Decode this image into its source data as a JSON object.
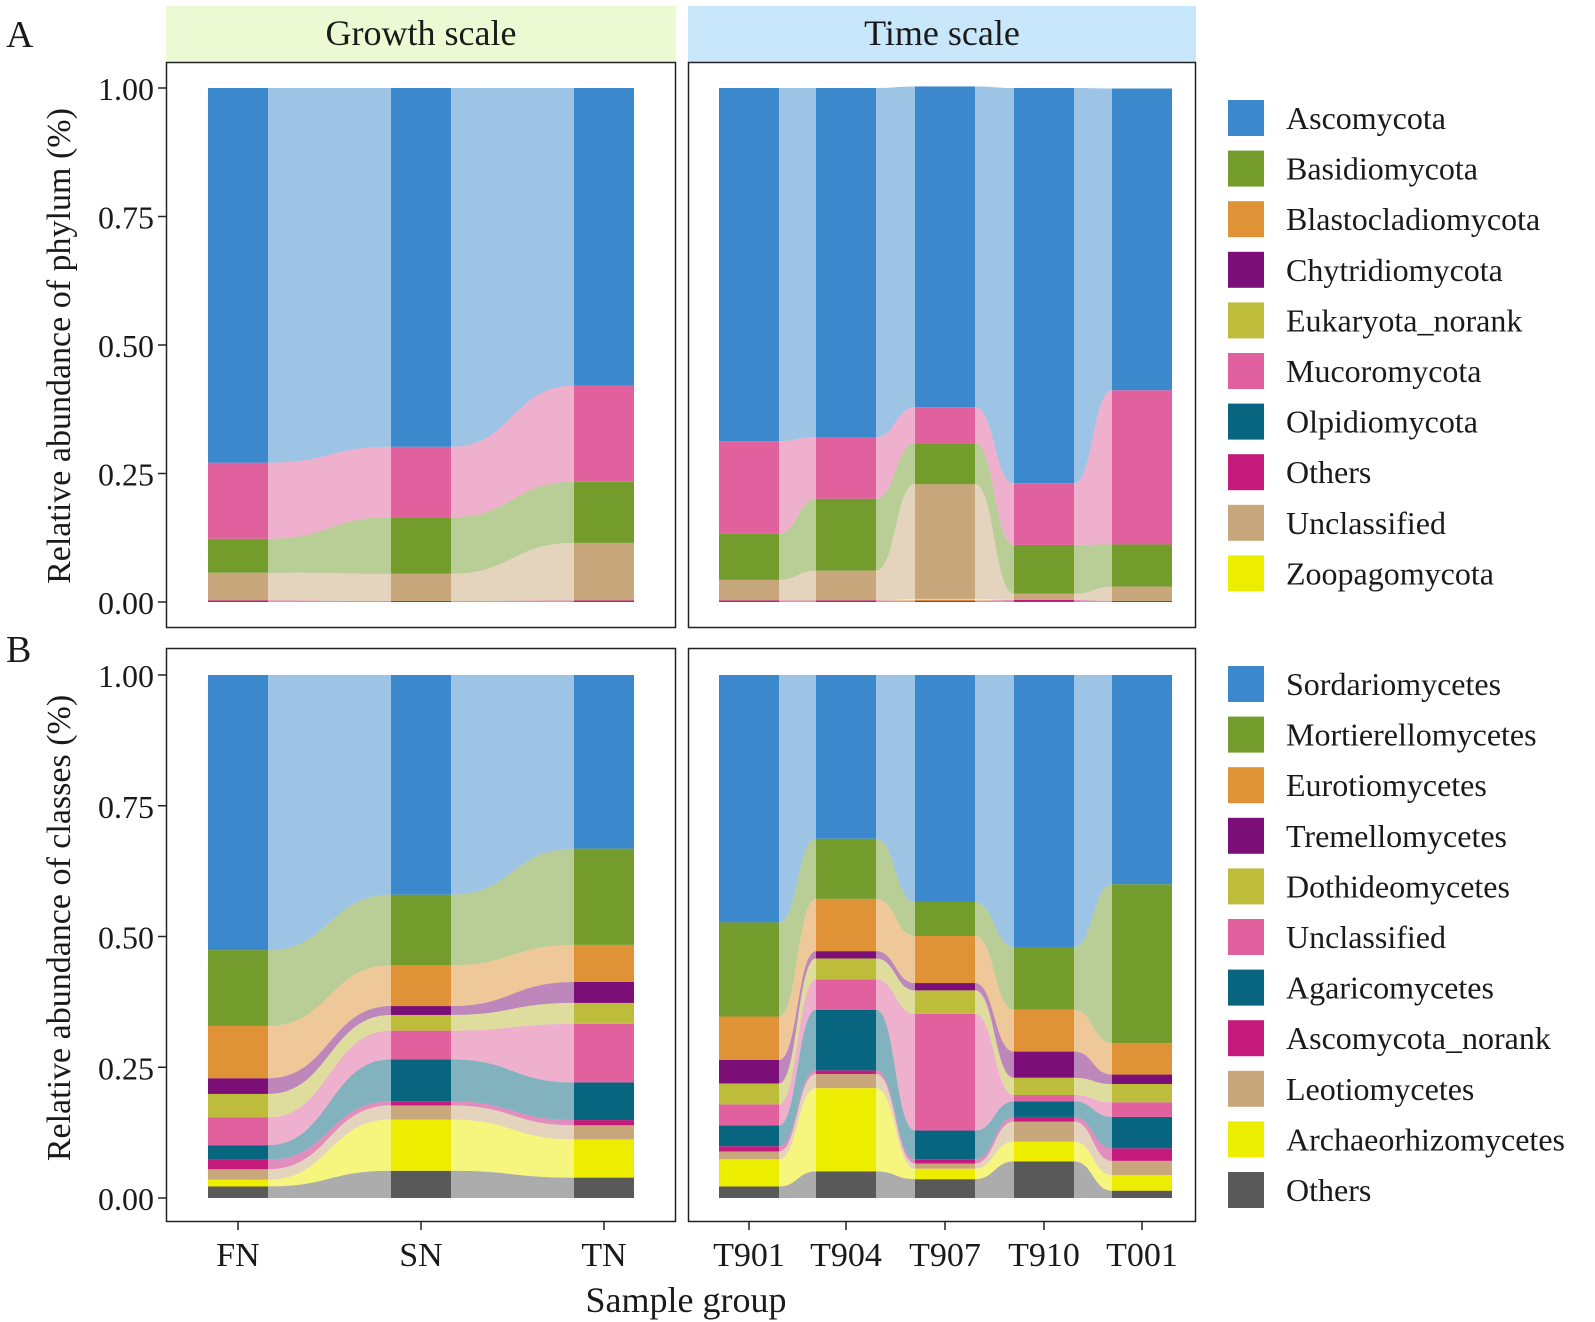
{
  "figure": {
    "panel_letters": [
      "A",
      "B"
    ],
    "strip_titles": [
      "Growth scale",
      "Time scale"
    ],
    "xlabel": "Sample group",
    "colors": {
      "strip_growth": "#ebfad2",
      "strip_time": "#c9e7fb"
    }
  },
  "chart_data": [
    {
      "type": "area",
      "subtype": "stacked-bar-alluvial",
      "panel": "A",
      "ylabel": "Relative abundance of phylum (%)",
      "ylim": [
        0,
        1
      ],
      "yticks": [
        "0.00",
        "0.25",
        "0.50",
        "0.75",
        "1.00"
      ],
      "facets": [
        {
          "title": "Growth scale",
          "categories": [
            "FN",
            "SN",
            "TN"
          ]
        },
        {
          "title": "Time scale",
          "categories": [
            "T901",
            "T904",
            "T907",
            "T910",
            "T001"
          ]
        }
      ],
      "series": [
        {
          "name": "Others",
          "color": "#c51b7d",
          "values": [
            0.003,
            0.002,
            0.003,
            0.003,
            0.003,
            0.003,
            0.004,
            0.002
          ]
        },
        {
          "name": "Zoopagomycota",
          "color": "#eded00",
          "values": [
            0,
            0,
            0,
            0,
            0,
            0.003,
            0,
            0
          ]
        },
        {
          "name": "Unclassified",
          "color": "#c9a77c",
          "values": [
            0.054,
            0.053,
            0.112,
            0.04,
            0.058,
            0.223,
            0.012,
            0.028
          ]
        },
        {
          "name": "Basidiomycota",
          "color": "#739c2d",
          "values": [
            0.066,
            0.11,
            0.119,
            0.09,
            0.14,
            0.08,
            0.095,
            0.082
          ]
        },
        {
          "name": "Mucoromycota",
          "color": "#e0619d",
          "values": [
            0.148,
            0.137,
            0.187,
            0.18,
            0.12,
            0.07,
            0.12,
            0.3
          ]
        },
        {
          "name": "Ascomycota",
          "color": "#3b88cc",
          "values": [
            0.729,
            0.698,
            0.579,
            0.687,
            0.679,
            0.624,
            0.769,
            0.587
          ]
        }
      ],
      "legend": [
        "Ascomycota",
        "Basidiomycota",
        "Blastocladiomycota",
        "Chytridiomycota",
        "Eukaryota_norank",
        "Mucoromycota",
        "Olpidiomycota",
        "Others",
        "Unclassified",
        "Zoopagomycota"
      ],
      "legend_colors": [
        "#3b88cc",
        "#739c2d",
        "#df9236",
        "#7b0f77",
        "#bdbc3b",
        "#e0619d",
        "#08657f",
        "#c51b7d",
        "#c9a77c",
        "#eded00"
      ]
    },
    {
      "type": "area",
      "subtype": "stacked-bar-alluvial",
      "panel": "B",
      "ylabel": "Relative abundance of classes (%)",
      "ylim": [
        0,
        1
      ],
      "yticks": [
        "0.00",
        "0.25",
        "0.50",
        "0.75",
        "1.00"
      ],
      "facets": [
        {
          "title": "Growth scale",
          "categories": [
            "FN",
            "SN",
            "TN"
          ]
        },
        {
          "title": "Time scale",
          "categories": [
            "T901",
            "T904",
            "T907",
            "T910",
            "T001"
          ]
        }
      ],
      "series": [
        {
          "name": "Others",
          "color": "#595959",
          "values": [
            0.022,
            0.052,
            0.039,
            0.022,
            0.051,
            0.036,
            0.07,
            0.014
          ]
        },
        {
          "name": "Archaeorhizomycetes",
          "color": "#eded00",
          "values": [
            0.013,
            0.098,
            0.073,
            0.052,
            0.159,
            0.02,
            0.038,
            0.03
          ]
        },
        {
          "name": "Leotiomycetes",
          "color": "#c9a77c",
          "values": [
            0.02,
            0.027,
            0.027,
            0.015,
            0.027,
            0.01,
            0.038,
            0.027
          ]
        },
        {
          "name": "Ascomycota_norank",
          "color": "#c51b7d",
          "values": [
            0.018,
            0.008,
            0.01,
            0.01,
            0.007,
            0.008,
            0.009,
            0.024
          ]
        },
        {
          "name": "Agaricomycetes",
          "color": "#08657f",
          "values": [
            0.028,
            0.08,
            0.072,
            0.04,
            0.116,
            0.055,
            0.03,
            0.06
          ]
        },
        {
          "name": "Unclassified",
          "color": "#e0619d",
          "values": [
            0.053,
            0.055,
            0.112,
            0.04,
            0.058,
            0.223,
            0.012,
            0.028
          ]
        },
        {
          "name": "Dothideomycetes",
          "color": "#bdbc3b",
          "values": [
            0.045,
            0.03,
            0.04,
            0.04,
            0.04,
            0.045,
            0.033,
            0.035
          ]
        },
        {
          "name": "Tremellomycetes",
          "color": "#7b0f77",
          "values": [
            0.03,
            0.017,
            0.04,
            0.045,
            0.014,
            0.014,
            0.05,
            0.018
          ]
        },
        {
          "name": "Eurotiomycetes",
          "color": "#df9236",
          "values": [
            0.1,
            0.078,
            0.071,
            0.083,
            0.1,
            0.09,
            0.08,
            0.06
          ]
        },
        {
          "name": "Mortierellomycetes",
          "color": "#739c2d",
          "values": [
            0.145,
            0.135,
            0.184,
            0.18,
            0.115,
            0.065,
            0.12,
            0.304
          ]
        },
        {
          "name": "Sordariomycetes",
          "color": "#3b88cc",
          "values": [
            0.526,
            0.42,
            0.332,
            0.473,
            0.313,
            0.434,
            0.52,
            0.4
          ]
        }
      ],
      "legend": [
        "Sordariomycetes",
        "Mortierellomycetes",
        "Eurotiomycetes",
        "Tremellomycetes",
        "Dothideomycetes",
        "Unclassified",
        "Agaricomycetes",
        "Ascomycota_norank",
        "Leotiomycetes",
        "Archaeorhizomycetes",
        "Others"
      ],
      "legend_colors": [
        "#3b88cc",
        "#739c2d",
        "#df9236",
        "#7b0f77",
        "#bdbc3b",
        "#e0619d",
        "#08657f",
        "#c51b7d",
        "#c9a77c",
        "#eded00",
        "#595959"
      ]
    }
  ]
}
